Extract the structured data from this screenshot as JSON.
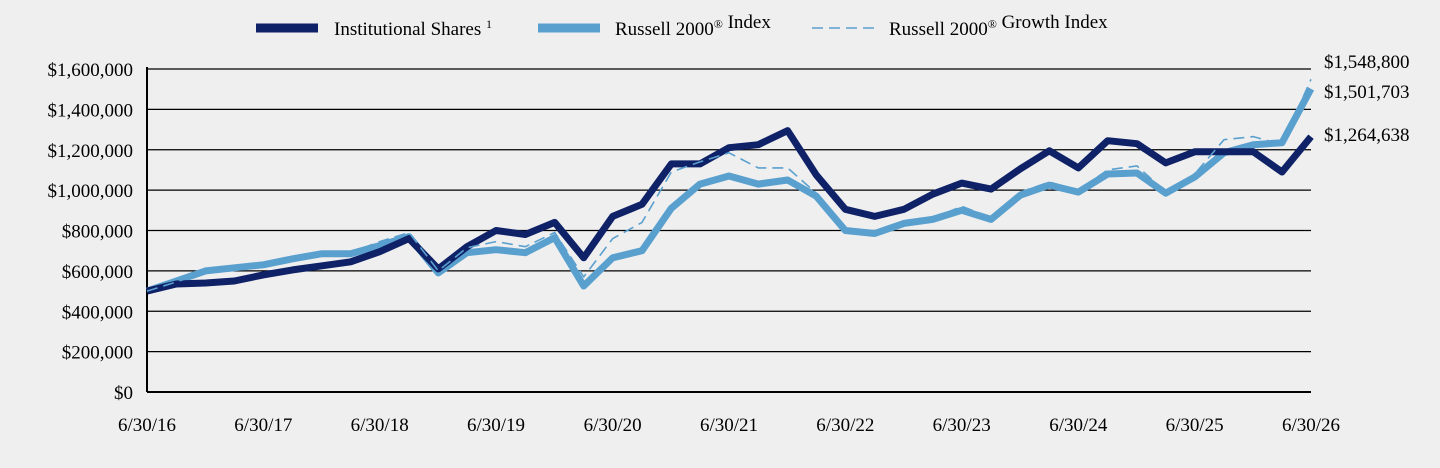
{
  "chart_data": {
    "type": "line",
    "title": "",
    "xlabel": "",
    "ylabel": "",
    "ylim": [
      0,
      1600000
    ],
    "yticks": [
      "$0",
      "$200,000",
      "$400,000",
      "$600,000",
      "$800,000",
      "$1,000,000",
      "$1,200,000",
      "$1,400,000",
      "$1,600,000"
    ],
    "ytick_values": [
      0,
      200000,
      400000,
      600000,
      800000,
      1000000,
      1200000,
      1400000,
      1600000
    ],
    "xlim": [
      "2016-06-30",
      "2026-06-30"
    ],
    "xticks": [
      "6/30/16",
      "6/30/17",
      "6/30/18",
      "6/30/19",
      "6/30/20",
      "6/30/21",
      "6/30/22",
      "6/30/23",
      "6/30/24",
      "6/30/25",
      "6/30/26"
    ],
    "xtick_dates": [
      "2016-06-30",
      "2017-06-30",
      "2018-06-30",
      "2019-06-30",
      "2020-06-30",
      "2021-06-30",
      "2022-06-30",
      "2023-06-30",
      "2024-06-30",
      "2025-06-30",
      "2026-06-30"
    ],
    "grid": true,
    "legend_position": "top",
    "x": [
      "2016-06-30",
      "2016-09-30",
      "2016-12-31",
      "2017-03-31",
      "2017-06-30",
      "2017-09-30",
      "2017-12-31",
      "2018-03-31",
      "2018-06-30",
      "2018-09-30",
      "2018-12-31",
      "2019-03-31",
      "2019-06-30",
      "2019-09-30",
      "2019-12-31",
      "2020-03-31",
      "2020-06-30",
      "2020-09-30",
      "2020-12-31",
      "2021-03-31",
      "2021-06-30",
      "2021-09-30",
      "2021-12-31",
      "2022-03-31",
      "2022-06-30",
      "2022-09-30",
      "2022-12-31",
      "2023-03-31",
      "2023-06-30",
      "2023-09-30",
      "2023-12-31",
      "2024-03-31",
      "2024-06-30",
      "2024-09-30",
      "2024-12-31",
      "2025-03-31",
      "2025-06-30",
      "2025-09-30",
      "2025-12-31",
      "2026-03-31",
      "2026-06-30"
    ],
    "series": [
      {
        "name": "Institutional Shares",
        "name_sup": "1",
        "style": "thick",
        "color": "#0f2167",
        "values": [
          500000,
          535000,
          540000,
          550000,
          580000,
          605000,
          625000,
          645000,
          695000,
          760000,
          610000,
          720000,
          800000,
          780000,
          840000,
          665000,
          870000,
          930000,
          1130000,
          1130000,
          1210000,
          1225000,
          1295000,
          1075000,
          905000,
          870000,
          905000,
          980000,
          1035000,
          1005000,
          1105000,
          1195000,
          1110000,
          1245000,
          1230000,
          1135000,
          1190000,
          1190000,
          1190000,
          1090000,
          1264638
        ],
        "end_label": "$1,264,638"
      },
      {
        "name": "Russell 2000® Index",
        "style": "thick",
        "color": "#5aa0cf",
        "values": [
          500000,
          550000,
          600000,
          615000,
          630000,
          660000,
          685000,
          685000,
          725000,
          770000,
          590000,
          690000,
          705000,
          690000,
          765000,
          525000,
          665000,
          700000,
          910000,
          1030000,
          1070000,
          1030000,
          1050000,
          970000,
          800000,
          785000,
          835000,
          855000,
          900000,
          855000,
          975000,
          1025000,
          990000,
          1080000,
          1085000,
          985000,
          1065000,
          1185000,
          1225000,
          1235000,
          1501703
        ],
        "end_label": "$1,501,703"
      },
      {
        "name": "Russell 2000® Growth Index",
        "style": "dashed",
        "color": "#5aa0cf",
        "values": [
          500000,
          545000,
          595000,
          615000,
          635000,
          665000,
          690000,
          690000,
          745000,
          790000,
          600000,
          715000,
          745000,
          720000,
          790000,
          570000,
          760000,
          840000,
          1090000,
          1140000,
          1185000,
          1110000,
          1110000,
          985000,
          810000,
          790000,
          840000,
          860000,
          920000,
          865000,
          990000,
          1040000,
          1000000,
          1100000,
          1120000,
          990000,
          1080000,
          1250000,
          1265000,
          1225000,
          1548800
        ],
        "end_label": "$1,548,800"
      }
    ]
  }
}
